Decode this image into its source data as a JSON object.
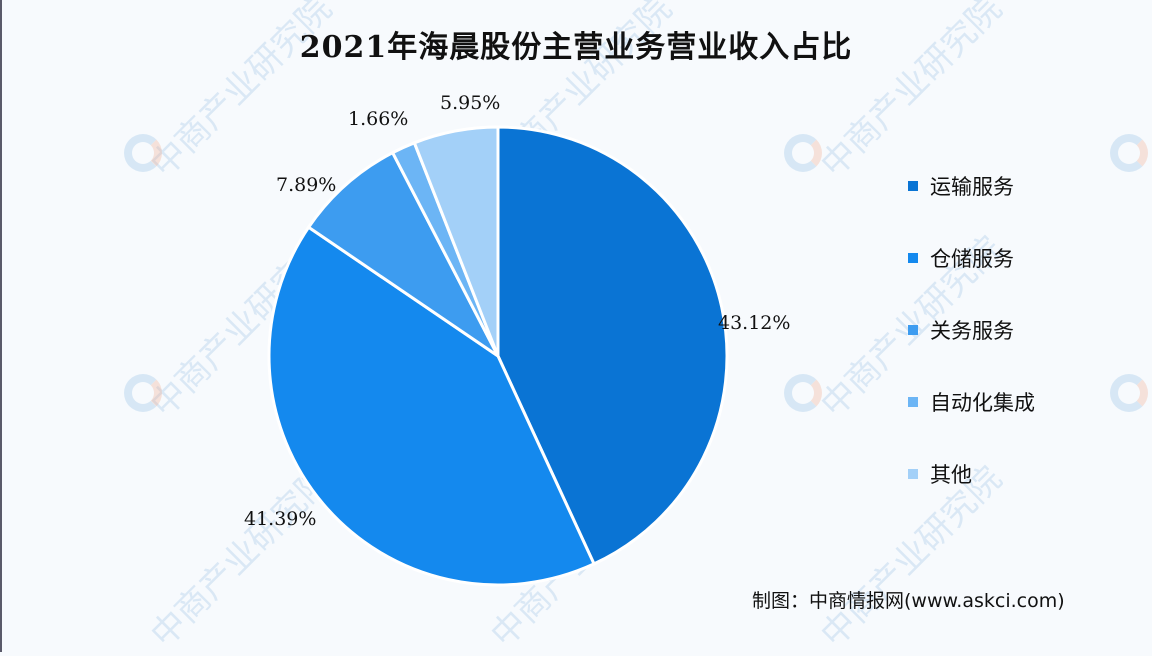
{
  "chart_data": {
    "type": "pie",
    "title": "2021年海晨股份主营业务营业收入占比",
    "categories": [
      "运输服务",
      "仓储服务",
      "关务服务",
      "自动化集成",
      "其他"
    ],
    "values": [
      43.12,
      41.39,
      7.89,
      1.66,
      5.95
    ],
    "value_labels": [
      "43.12%",
      "41.39%",
      "7.89%",
      "1.66%",
      "5.95%"
    ],
    "colors": [
      "#0a74d4",
      "#1489ee",
      "#3d9cf0",
      "#6cb5f5",
      "#a3d0f8"
    ],
    "start_angle": "12 o'clock",
    "direction": "clockwise",
    "legend_position": "right"
  },
  "title": "2021年海晨股份主营业务营业收入占比",
  "labels": {
    "transport": "43.12%",
    "warehouse": "41.39%",
    "customs": "7.89%",
    "automation": "1.66%",
    "other": "5.95%"
  },
  "legend": [
    {
      "label": "运输服务",
      "color": "#0a74d4"
    },
    {
      "label": "仓储服务",
      "color": "#1489ee"
    },
    {
      "label": "关务服务",
      "color": "#3d9cf0"
    },
    {
      "label": "自动化集成",
      "color": "#6cb5f5"
    },
    {
      "label": "其他",
      "color": "#a3d0f8"
    }
  ],
  "source": "制图：中商情报网(www.askci.com)",
  "watermark": "中商产业研究院"
}
